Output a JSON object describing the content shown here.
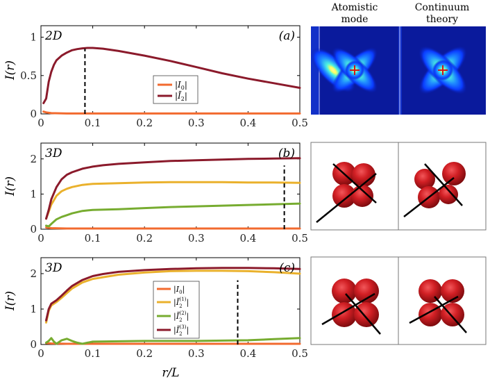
{
  "xlabel": "r/L",
  "column_headers": {
    "atomistic": [
      "Atomistic",
      "mode"
    ],
    "continuum": [
      "Continuum",
      "theory"
    ]
  },
  "colors": {
    "I0": "#f26a2e",
    "I2": "#8b1a2b",
    "I2_1": "#eab12c",
    "I2_2": "#77ac30",
    "I2_3": "#8b1a2b",
    "blob": "#c8161c"
  },
  "chart_data": [
    {
      "type": "line",
      "panel": "(a)",
      "dimension": "2D",
      "ylabel": "I(r)",
      "xlim": [
        0,
        0.5
      ],
      "ylim": [
        0,
        1.15
      ],
      "xticks": [
        "0",
        "0.1",
        "0.2",
        "0.3",
        "0.4",
        "0.5"
      ],
      "yticks": [
        "0",
        "0.5",
        "1"
      ],
      "ytick_values": [
        0,
        0.5,
        1
      ],
      "legend": {
        "position": "center",
        "entries": [
          "|I_0|",
          "|I_2|"
        ]
      },
      "vline_x": 0.085,
      "series": [
        {
          "name": "|I_0|",
          "color_key": "I0",
          "x": [
            0.005,
            0.01,
            0.02,
            0.05,
            0.1,
            0.2,
            0.3,
            0.4,
            0.5
          ],
          "y": [
            0.03,
            0.02,
            0.01,
            0.005,
            0.005,
            0.005,
            0.005,
            0.005,
            0.005
          ]
        },
        {
          "name": "|I_2|",
          "color_key": "I2",
          "x": [
            0.005,
            0.01,
            0.015,
            0.02,
            0.025,
            0.03,
            0.04,
            0.05,
            0.06,
            0.07,
            0.08,
            0.09,
            0.1,
            0.12,
            0.15,
            0.2,
            0.25,
            0.3,
            0.35,
            0.4,
            0.45,
            0.5
          ],
          "y": [
            0.14,
            0.2,
            0.42,
            0.55,
            0.64,
            0.7,
            0.76,
            0.8,
            0.83,
            0.845,
            0.855,
            0.86,
            0.86,
            0.85,
            0.82,
            0.76,
            0.69,
            0.61,
            0.53,
            0.46,
            0.4,
            0.34
          ]
        }
      ]
    },
    {
      "type": "line",
      "panel": "(b)",
      "dimension": "3D",
      "ylabel": "I(r)",
      "xlim": [
        0,
        0.5
      ],
      "ylim": [
        0,
        2.45
      ],
      "xticks": [
        "0",
        "0.1",
        "0.2",
        "0.3",
        "0.4",
        "0.5"
      ],
      "yticks": [
        "0",
        "1",
        "2"
      ],
      "ytick_values": [
        0,
        1,
        2
      ],
      "vline_x": 0.47,
      "series": [
        {
          "color_key": "I0",
          "x": [
            0.01,
            0.02,
            0.05,
            0.1,
            0.2,
            0.3,
            0.4,
            0.5
          ],
          "y": [
            0.05,
            0.03,
            0.02,
            0.02,
            0.02,
            0.02,
            0.02,
            0.02
          ]
        },
        {
          "color_key": "I2_2",
          "x": [
            0.01,
            0.015,
            0.02,
            0.03,
            0.04,
            0.05,
            0.06,
            0.08,
            0.1,
            0.15,
            0.2,
            0.25,
            0.3,
            0.35,
            0.4,
            0.45,
            0.5
          ],
          "y": [
            0.1,
            0.08,
            0.15,
            0.28,
            0.35,
            0.4,
            0.45,
            0.52,
            0.55,
            0.57,
            0.6,
            0.63,
            0.65,
            0.67,
            0.69,
            0.71,
            0.73
          ]
        },
        {
          "color_key": "I2_1",
          "x": [
            0.01,
            0.015,
            0.02,
            0.03,
            0.04,
            0.05,
            0.06,
            0.08,
            0.1,
            0.15,
            0.2,
            0.25,
            0.3,
            0.35,
            0.4,
            0.45,
            0.5
          ],
          "y": [
            0.3,
            0.5,
            0.7,
            0.95,
            1.08,
            1.15,
            1.2,
            1.26,
            1.29,
            1.31,
            1.33,
            1.34,
            1.34,
            1.34,
            1.33,
            1.33,
            1.32
          ]
        },
        {
          "color_key": "I2_3",
          "x": [
            0.01,
            0.015,
            0.02,
            0.03,
            0.04,
            0.05,
            0.06,
            0.08,
            0.1,
            0.12,
            0.15,
            0.2,
            0.25,
            0.3,
            0.35,
            0.4,
            0.45,
            0.5
          ],
          "y": [
            0.3,
            0.55,
            0.85,
            1.2,
            1.42,
            1.55,
            1.62,
            1.72,
            1.78,
            1.82,
            1.86,
            1.9,
            1.94,
            1.96,
            1.98,
            2.0,
            2.01,
            2.02
          ]
        }
      ]
    },
    {
      "type": "line",
      "panel": "(c)",
      "dimension": "3D",
      "ylabel": "I(r)",
      "xlabel": "r/L",
      "xlim": [
        0,
        0.5
      ],
      "ylim": [
        0,
        2.45
      ],
      "xticks": [
        "0",
        "0.1",
        "0.2",
        "0.3",
        "0.4",
        "0.5"
      ],
      "yticks": [
        "0",
        "1",
        "2"
      ],
      "ytick_values": [
        0,
        1,
        2
      ],
      "legend": {
        "position": "center",
        "entries": [
          "|I_0|",
          "|Ī_2^(1)|",
          "|Ī_2^(2)|",
          "|Ī_2^(3)|"
        ]
      },
      "vline_x": 0.38,
      "series": [
        {
          "name": "|I_0|",
          "color_key": "I0",
          "x": [
            0.01,
            0.02,
            0.05,
            0.1,
            0.2,
            0.3,
            0.4,
            0.5
          ],
          "y": [
            0.04,
            0.03,
            0.02,
            0.02,
            0.02,
            0.02,
            0.02,
            0.02
          ]
        },
        {
          "name": "|Ī_2^(2)|",
          "color_key": "I2_2",
          "x": [
            0.01,
            0.015,
            0.02,
            0.025,
            0.03,
            0.04,
            0.05,
            0.06,
            0.07,
            0.08,
            0.09,
            0.1,
            0.15,
            0.2,
            0.25,
            0.3,
            0.35,
            0.4,
            0.45,
            0.5
          ],
          "y": [
            0.05,
            0.1,
            0.18,
            0.08,
            0.02,
            0.12,
            0.16,
            0.1,
            0.05,
            0.02,
            0.05,
            0.08,
            0.09,
            0.1,
            0.1,
            0.1,
            0.11,
            0.12,
            0.15,
            0.18
          ]
        },
        {
          "name": "|Ī_2^(1)|",
          "color_key": "I2_1",
          "x": [
            0.01,
            0.015,
            0.02,
            0.03,
            0.04,
            0.05,
            0.06,
            0.08,
            0.1,
            0.12,
            0.15,
            0.2,
            0.25,
            0.3,
            0.35,
            0.4,
            0.45,
            0.5
          ],
          "y": [
            0.62,
            0.95,
            1.1,
            1.2,
            1.32,
            1.45,
            1.58,
            1.75,
            1.85,
            1.9,
            1.97,
            2.03,
            2.07,
            2.08,
            2.08,
            2.07,
            2.04,
            2.0
          ]
        },
        {
          "name": "|Ī_2^(3)|",
          "color_key": "I2_3",
          "x": [
            0.01,
            0.015,
            0.02,
            0.03,
            0.04,
            0.05,
            0.06,
            0.08,
            0.1,
            0.12,
            0.15,
            0.2,
            0.25,
            0.3,
            0.35,
            0.4,
            0.45,
            0.5
          ],
          "y": [
            0.68,
            1.0,
            1.15,
            1.25,
            1.38,
            1.52,
            1.65,
            1.82,
            1.93,
            1.99,
            2.05,
            2.1,
            2.13,
            2.15,
            2.16,
            2.16,
            2.15,
            2.13
          ]
        }
      ]
    }
  ]
}
